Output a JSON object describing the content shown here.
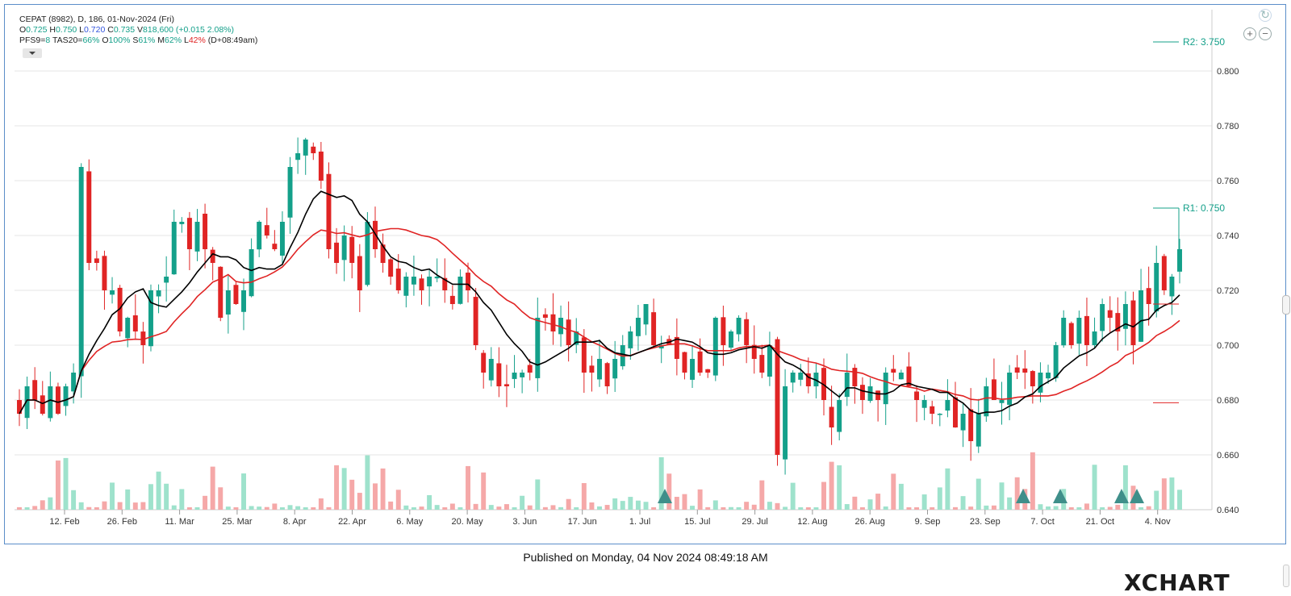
{
  "header": {
    "symbol_line": "CEPAT (8982), D, 186, 01-Nov-2024 (Fri)",
    "ohlc": {
      "o_label": "O",
      "o_value": "0.725",
      "h_label": "H",
      "h_value": "0.750",
      "l_label": "L",
      "l_value": "0.720",
      "c_label": "C",
      "c_value": "0.735",
      "v_label": "V",
      "v_value": "818,600",
      "change": "(+0.015 2.08%)"
    },
    "indicators": {
      "pfs_label": "PFS9=",
      "pfs_value": "8",
      "tas_label": "TAS20=",
      "tas_value": "66%",
      "o_label": "O",
      "o_value": "100%",
      "s_label": "S",
      "s_value": "61%",
      "m_label": "M",
      "m_value": "62%",
      "l_label": "L",
      "l_value": "42%",
      "time": "(D+08:49am)"
    }
  },
  "footer": {
    "published": "Published on Monday, 04 Nov 2024 08:49:18 AM",
    "logo_x": "X",
    "logo_rest": "CHART"
  },
  "controls": {
    "zoom_in": "+",
    "zoom_out": "−",
    "refresh": "↻"
  },
  "colors": {
    "up": "#14a08a",
    "down": "#e02424",
    "ma_short": "#000000",
    "ma_long": "#e02424",
    "volume_up": "#9ee2cc",
    "volume_down": "#f5a8a8",
    "grid": "#e5e5e5",
    "axis_text": "#333333"
  },
  "chart_data": {
    "type": "candlestick",
    "title": "CEPAT (8982), D, 186, 01-Nov-2024 (Fri)",
    "ylim": [
      0.64,
      0.8
    ],
    "y_ticks": [
      "0.640",
      "0.660",
      "0.680",
      "0.700",
      "0.720",
      "0.740",
      "0.760",
      "0.780",
      "0.800"
    ],
    "x_ticks": [
      "12. Feb",
      "26. Feb",
      "11. Mar",
      "25. Mar",
      "8. Apr",
      "22. Apr",
      "6. May",
      "20. May",
      "3. Jun",
      "17. Jun",
      "1. Jul",
      "15. Jul",
      "29. Jul",
      "12. Aug",
      "26. Aug",
      "9. Sep",
      "23. Sep",
      "7. Oct",
      "21. Oct",
      "4. Nov"
    ],
    "grid": true,
    "levels": [
      {
        "name": "R1",
        "label": "R1: 0.750",
        "value": 0.75
      },
      {
        "name": "R2",
        "label": "R2: 3.750",
        "value": 3.75
      }
    ],
    "signals": [
      {
        "date": "1. Jul"
      },
      {
        "date": "23. Sep"
      },
      {
        "date": "7. Oct"
      },
      {
        "date": "21. Oct"
      }
    ],
    "closes": [
      0.675,
      0.685,
      0.68,
      0.675,
      0.685,
      0.675,
      0.685,
      0.69,
      0.765,
      0.73,
      0.73,
      0.72,
      0.72,
      0.705,
      0.71,
      0.705,
      0.7,
      0.72,
      0.72,
      0.725,
      0.745,
      0.745,
      0.735,
      0.745,
      0.735,
      0.73,
      0.71,
      0.72,
      0.715,
      0.72,
      0.735,
      0.745,
      0.74,
      0.735,
      0.745,
      0.765,
      0.77,
      0.775,
      0.77,
      0.76,
      0.735,
      0.73,
      0.74,
      0.73,
      0.72,
      0.745,
      0.735,
      0.73,
      0.725,
      0.72,
      0.725,
      0.725,
      0.72,
      0.725,
      0.725,
      0.72,
      0.715,
      0.725,
      0.72,
      0.7,
      0.69,
      0.695,
      0.685,
      0.685,
      0.69,
      0.69,
      0.69,
      0.71,
      0.71,
      0.705,
      0.71,
      0.7,
      0.705,
      0.69,
      0.69,
      0.695,
      0.685,
      0.695,
      0.7,
      0.705,
      0.71,
      0.715,
      0.7,
      0.7,
      0.7,
      0.695,
      0.69,
      0.695,
      0.69,
      0.69,
      0.71,
      0.7,
      0.705,
      0.71,
      0.7,
      0.695,
      0.69,
      0.7,
      0.66,
      0.685,
      0.69,
      0.69,
      0.685,
      0.69,
      0.68,
      0.67,
      0.68,
      0.69,
      0.685,
      0.68,
      0.685,
      0.68,
      0.69,
      0.69,
      0.69,
      0.685,
      0.68,
      0.68,
      0.675,
      0.675,
      0.68,
      0.67,
      0.675,
      0.665,
      0.675,
      0.685,
      0.68,
      0.68,
      0.69,
      0.69,
      0.69,
      0.685,
      0.69,
      0.69,
      0.7,
      0.71,
      0.7,
      0.71,
      0.7,
      0.705,
      0.715,
      0.71,
      0.705,
      0.715,
      0.7,
      0.72,
      0.715,
      0.73,
      0.72,
      0.725,
      0.735
    ],
    "sma_short_last": 0.715,
    "sma_long_last": 0.698
  }
}
